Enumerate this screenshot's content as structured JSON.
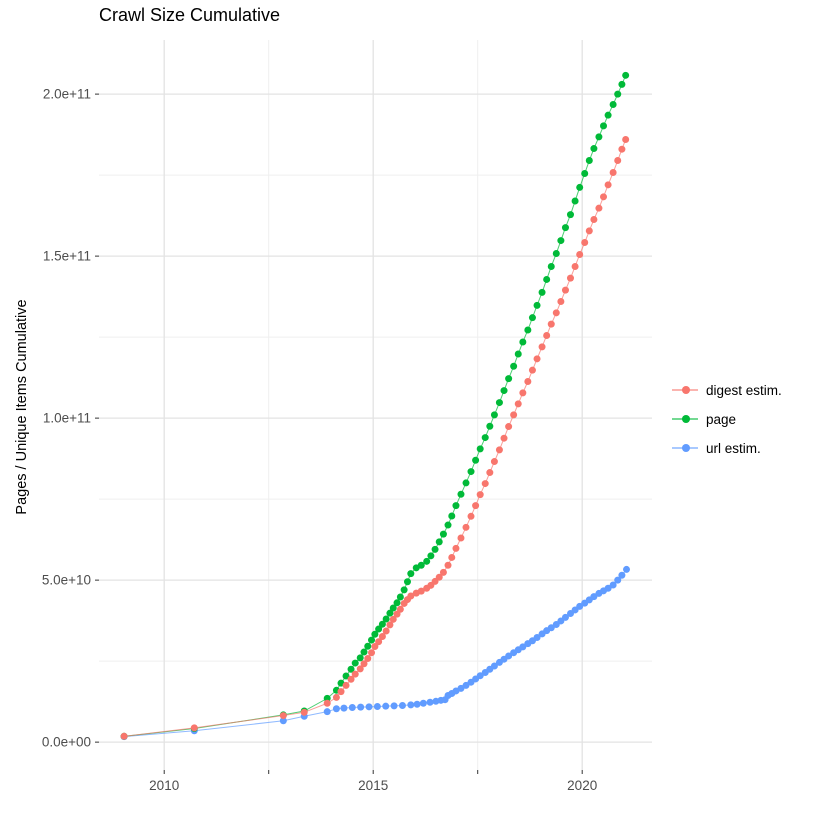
{
  "title": "Crawl Size Cumulative",
  "y_axis": {
    "label": "Pages / Unique Items Cumulative",
    "tick_labels": [
      "0.0e+00",
      "5.0e+10",
      "1.0e+11",
      "1.5e+11",
      "2.0e+11"
    ]
  },
  "x_axis": {
    "tick_labels": [
      "2010",
      "2015",
      "2020"
    ]
  },
  "legend": {
    "items": [
      {
        "label": "digest estim.",
        "color": "#F8766D"
      },
      {
        "label": "page",
        "color": "#00BA38"
      },
      {
        "label": "url estim.",
        "color": "#619CFF"
      }
    ]
  },
  "colors": {
    "digest": "#F8766D",
    "page": "#00BA38",
    "url": "#619CFF",
    "grid_major": "#E3E3E3",
    "grid_minor": "#EFEFEF",
    "tick_text": "#4D4D4D",
    "tick_mark": "#343434"
  },
  "chart_data": {
    "type": "scatter",
    "title": "Crawl Size Cumulative",
    "xlabel": "",
    "ylabel": "Pages / Unique Items Cumulative",
    "y_unit": "items, billions (1e9)",
    "x_unit": "year (decimal)",
    "grid": true,
    "legend_position": "right",
    "xlim": [
      2008.44,
      2021.67
    ],
    "ylim": [
      -8.6,
      216.7
    ],
    "x_major_ticks": [
      2010,
      2015,
      2020
    ],
    "x_minor_gridlines": [
      2012.5,
      2017.5
    ],
    "y_major_ticks": [
      0,
      50,
      100,
      150,
      200
    ],
    "y_major_tick_labels": [
      "0.0e+00",
      "5.0e+10",
      "1.0e+11",
      "1.5e+11",
      "2.0e+11"
    ],
    "y_minor_gridlines": [
      25,
      75,
      125,
      175
    ],
    "series": [
      {
        "name": "digest estim.",
        "color": "#F8766D",
        "points": [
          [
            2009.04,
            1.8
          ],
          [
            2010.72,
            4.4
          ],
          [
            2012.85,
            8.2
          ],
          [
            2013.35,
            9.2
          ],
          [
            2013.9,
            12
          ],
          [
            2014.12,
            13.8
          ],
          [
            2014.23,
            15.6
          ],
          [
            2014.35,
            17.5
          ],
          [
            2014.47,
            19.4
          ],
          [
            2014.57,
            21
          ],
          [
            2014.69,
            22.6
          ],
          [
            2014.78,
            24.2
          ],
          [
            2014.87,
            25.8
          ],
          [
            2014.96,
            27.6
          ],
          [
            2015.04,
            29.5
          ],
          [
            2015.13,
            31
          ],
          [
            2015.22,
            32.6
          ],
          [
            2015.31,
            34.3
          ],
          [
            2015.4,
            36.2
          ],
          [
            2015.48,
            37.9
          ],
          [
            2015.57,
            39.5
          ],
          [
            2015.65,
            41
          ],
          [
            2015.74,
            42.8
          ],
          [
            2015.82,
            44
          ],
          [
            2015.9,
            45.1
          ],
          [
            2016.03,
            46
          ],
          [
            2016.15,
            46.6
          ],
          [
            2016.28,
            47.5
          ],
          [
            2016.38,
            48.4
          ],
          [
            2016.48,
            49.6
          ],
          [
            2016.58,
            50.9
          ],
          [
            2016.68,
            52.4
          ],
          [
            2016.79,
            54.6
          ],
          [
            2016.88,
            57
          ],
          [
            2016.98,
            59.8
          ],
          [
            2017.1,
            63
          ],
          [
            2017.22,
            66.3
          ],
          [
            2017.34,
            69.7
          ],
          [
            2017.45,
            73
          ],
          [
            2017.56,
            76.4
          ],
          [
            2017.68,
            79.8
          ],
          [
            2017.79,
            83.2
          ],
          [
            2017.9,
            86.6
          ],
          [
            2018.02,
            90.2
          ],
          [
            2018.13,
            93.8
          ],
          [
            2018.24,
            97.4
          ],
          [
            2018.36,
            101
          ],
          [
            2018.47,
            104.4
          ],
          [
            2018.58,
            107.8
          ],
          [
            2018.7,
            111.3
          ],
          [
            2018.81,
            114.8
          ],
          [
            2018.92,
            118.3
          ],
          [
            2019.04,
            122
          ],
          [
            2019.15,
            125.5
          ],
          [
            2019.26,
            129
          ],
          [
            2019.38,
            132.5
          ],
          [
            2019.49,
            136
          ],
          [
            2019.6,
            139.5
          ],
          [
            2019.72,
            143.2
          ],
          [
            2019.83,
            146.8
          ],
          [
            2019.94,
            150.5
          ],
          [
            2020.06,
            154.2
          ],
          [
            2020.17,
            157.8
          ],
          [
            2020.28,
            161.3
          ],
          [
            2020.4,
            164.8
          ],
          [
            2020.51,
            168.3
          ],
          [
            2020.62,
            172
          ],
          [
            2020.74,
            175.8
          ],
          [
            2020.85,
            179.5
          ],
          [
            2020.95,
            183
          ],
          [
            2021.04,
            186
          ]
        ]
      },
      {
        "name": "page",
        "color": "#00BA38",
        "points": [
          [
            2009.04,
            1.8
          ],
          [
            2010.72,
            4.2
          ],
          [
            2012.85,
            8.4
          ],
          [
            2013.35,
            9.6
          ],
          [
            2013.9,
            13.5
          ],
          [
            2014.12,
            16
          ],
          [
            2014.23,
            18.2
          ],
          [
            2014.35,
            20.4
          ],
          [
            2014.47,
            22.5
          ],
          [
            2014.57,
            24.4
          ],
          [
            2014.69,
            26
          ],
          [
            2014.78,
            27.8
          ],
          [
            2014.87,
            29.6
          ],
          [
            2014.96,
            31.5
          ],
          [
            2015.04,
            33.3
          ],
          [
            2015.13,
            34.9
          ],
          [
            2015.22,
            36.4
          ],
          [
            2015.31,
            38
          ],
          [
            2015.4,
            39.8
          ],
          [
            2015.48,
            41.4
          ],
          [
            2015.57,
            43
          ],
          [
            2015.65,
            44.8
          ],
          [
            2015.74,
            47
          ],
          [
            2015.82,
            49.5
          ],
          [
            2015.9,
            52
          ],
          [
            2016.03,
            53.8
          ],
          [
            2016.15,
            54.6
          ],
          [
            2016.28,
            55.8
          ],
          [
            2016.38,
            57.5
          ],
          [
            2016.48,
            59.5
          ],
          [
            2016.58,
            61.8
          ],
          [
            2016.68,
            64.2
          ],
          [
            2016.79,
            67
          ],
          [
            2016.88,
            69.8
          ],
          [
            2016.98,
            73
          ],
          [
            2017.1,
            76.5
          ],
          [
            2017.22,
            80
          ],
          [
            2017.34,
            83.5
          ],
          [
            2017.45,
            87
          ],
          [
            2017.56,
            90.5
          ],
          [
            2017.68,
            94
          ],
          [
            2017.79,
            97.5
          ],
          [
            2017.9,
            101
          ],
          [
            2018.02,
            104.8
          ],
          [
            2018.13,
            108.5
          ],
          [
            2018.24,
            112.2
          ],
          [
            2018.36,
            116
          ],
          [
            2018.47,
            119.8
          ],
          [
            2018.58,
            123.5
          ],
          [
            2018.7,
            127.2
          ],
          [
            2018.81,
            131
          ],
          [
            2018.92,
            134.8
          ],
          [
            2019.04,
            138.8
          ],
          [
            2019.15,
            142.8
          ],
          [
            2019.26,
            146.8
          ],
          [
            2019.38,
            150.8
          ],
          [
            2019.49,
            154.8
          ],
          [
            2019.6,
            158.8
          ],
          [
            2019.72,
            162.8
          ],
          [
            2019.83,
            167
          ],
          [
            2019.94,
            171.2
          ],
          [
            2020.06,
            175.5
          ],
          [
            2020.17,
            179.5
          ],
          [
            2020.28,
            183.2
          ],
          [
            2020.4,
            186.8
          ],
          [
            2020.51,
            190.2
          ],
          [
            2020.62,
            193.5
          ],
          [
            2020.74,
            196.8
          ],
          [
            2020.85,
            200
          ],
          [
            2020.95,
            203
          ],
          [
            2021.04,
            205.8
          ]
        ]
      },
      {
        "name": "url estim.",
        "color": "#619CFF",
        "points": [
          [
            2009.04,
            1.7
          ],
          [
            2010.72,
            3.5
          ],
          [
            2012.85,
            6.6
          ],
          [
            2013.35,
            8
          ],
          [
            2013.9,
            9.4
          ],
          [
            2014.12,
            10.3
          ],
          [
            2014.3,
            10.5
          ],
          [
            2014.5,
            10.7
          ],
          [
            2014.7,
            10.8
          ],
          [
            2014.9,
            10.9
          ],
          [
            2015.1,
            11
          ],
          [
            2015.3,
            11.1
          ],
          [
            2015.5,
            11.2
          ],
          [
            2015.7,
            11.3
          ],
          [
            2015.9,
            11.5
          ],
          [
            2016.05,
            11.7
          ],
          [
            2016.2,
            12
          ],
          [
            2016.36,
            12.3
          ],
          [
            2016.5,
            12.6
          ],
          [
            2016.62,
            12.9
          ],
          [
            2016.72,
            13.1
          ],
          [
            2016.79,
            14.4
          ],
          [
            2016.88,
            15
          ],
          [
            2016.98,
            15.8
          ],
          [
            2017.1,
            16.6
          ],
          [
            2017.22,
            17.5
          ],
          [
            2017.34,
            18.5
          ],
          [
            2017.45,
            19.5
          ],
          [
            2017.56,
            20.5
          ],
          [
            2017.68,
            21.5
          ],
          [
            2017.79,
            22.5
          ],
          [
            2017.9,
            23.5
          ],
          [
            2018.02,
            24.6
          ],
          [
            2018.13,
            25.6
          ],
          [
            2018.24,
            26.6
          ],
          [
            2018.36,
            27.6
          ],
          [
            2018.47,
            28.5
          ],
          [
            2018.58,
            29.4
          ],
          [
            2018.7,
            30.4
          ],
          [
            2018.81,
            31.3
          ],
          [
            2018.92,
            32.3
          ],
          [
            2019.04,
            33.4
          ],
          [
            2019.15,
            34.4
          ],
          [
            2019.26,
            35.3
          ],
          [
            2019.38,
            36.3
          ],
          [
            2019.49,
            37.4
          ],
          [
            2019.6,
            38.5
          ],
          [
            2019.72,
            39.7
          ],
          [
            2019.83,
            40.8
          ],
          [
            2019.94,
            41.9
          ],
          [
            2020.06,
            42.9
          ],
          [
            2020.17,
            43.9
          ],
          [
            2020.28,
            44.9
          ],
          [
            2020.4,
            45.9
          ],
          [
            2020.51,
            46.7
          ],
          [
            2020.62,
            47.5
          ],
          [
            2020.74,
            48.5
          ],
          [
            2020.85,
            50
          ],
          [
            2020.95,
            51.5
          ],
          [
            2021.06,
            53.3
          ]
        ]
      }
    ]
  }
}
